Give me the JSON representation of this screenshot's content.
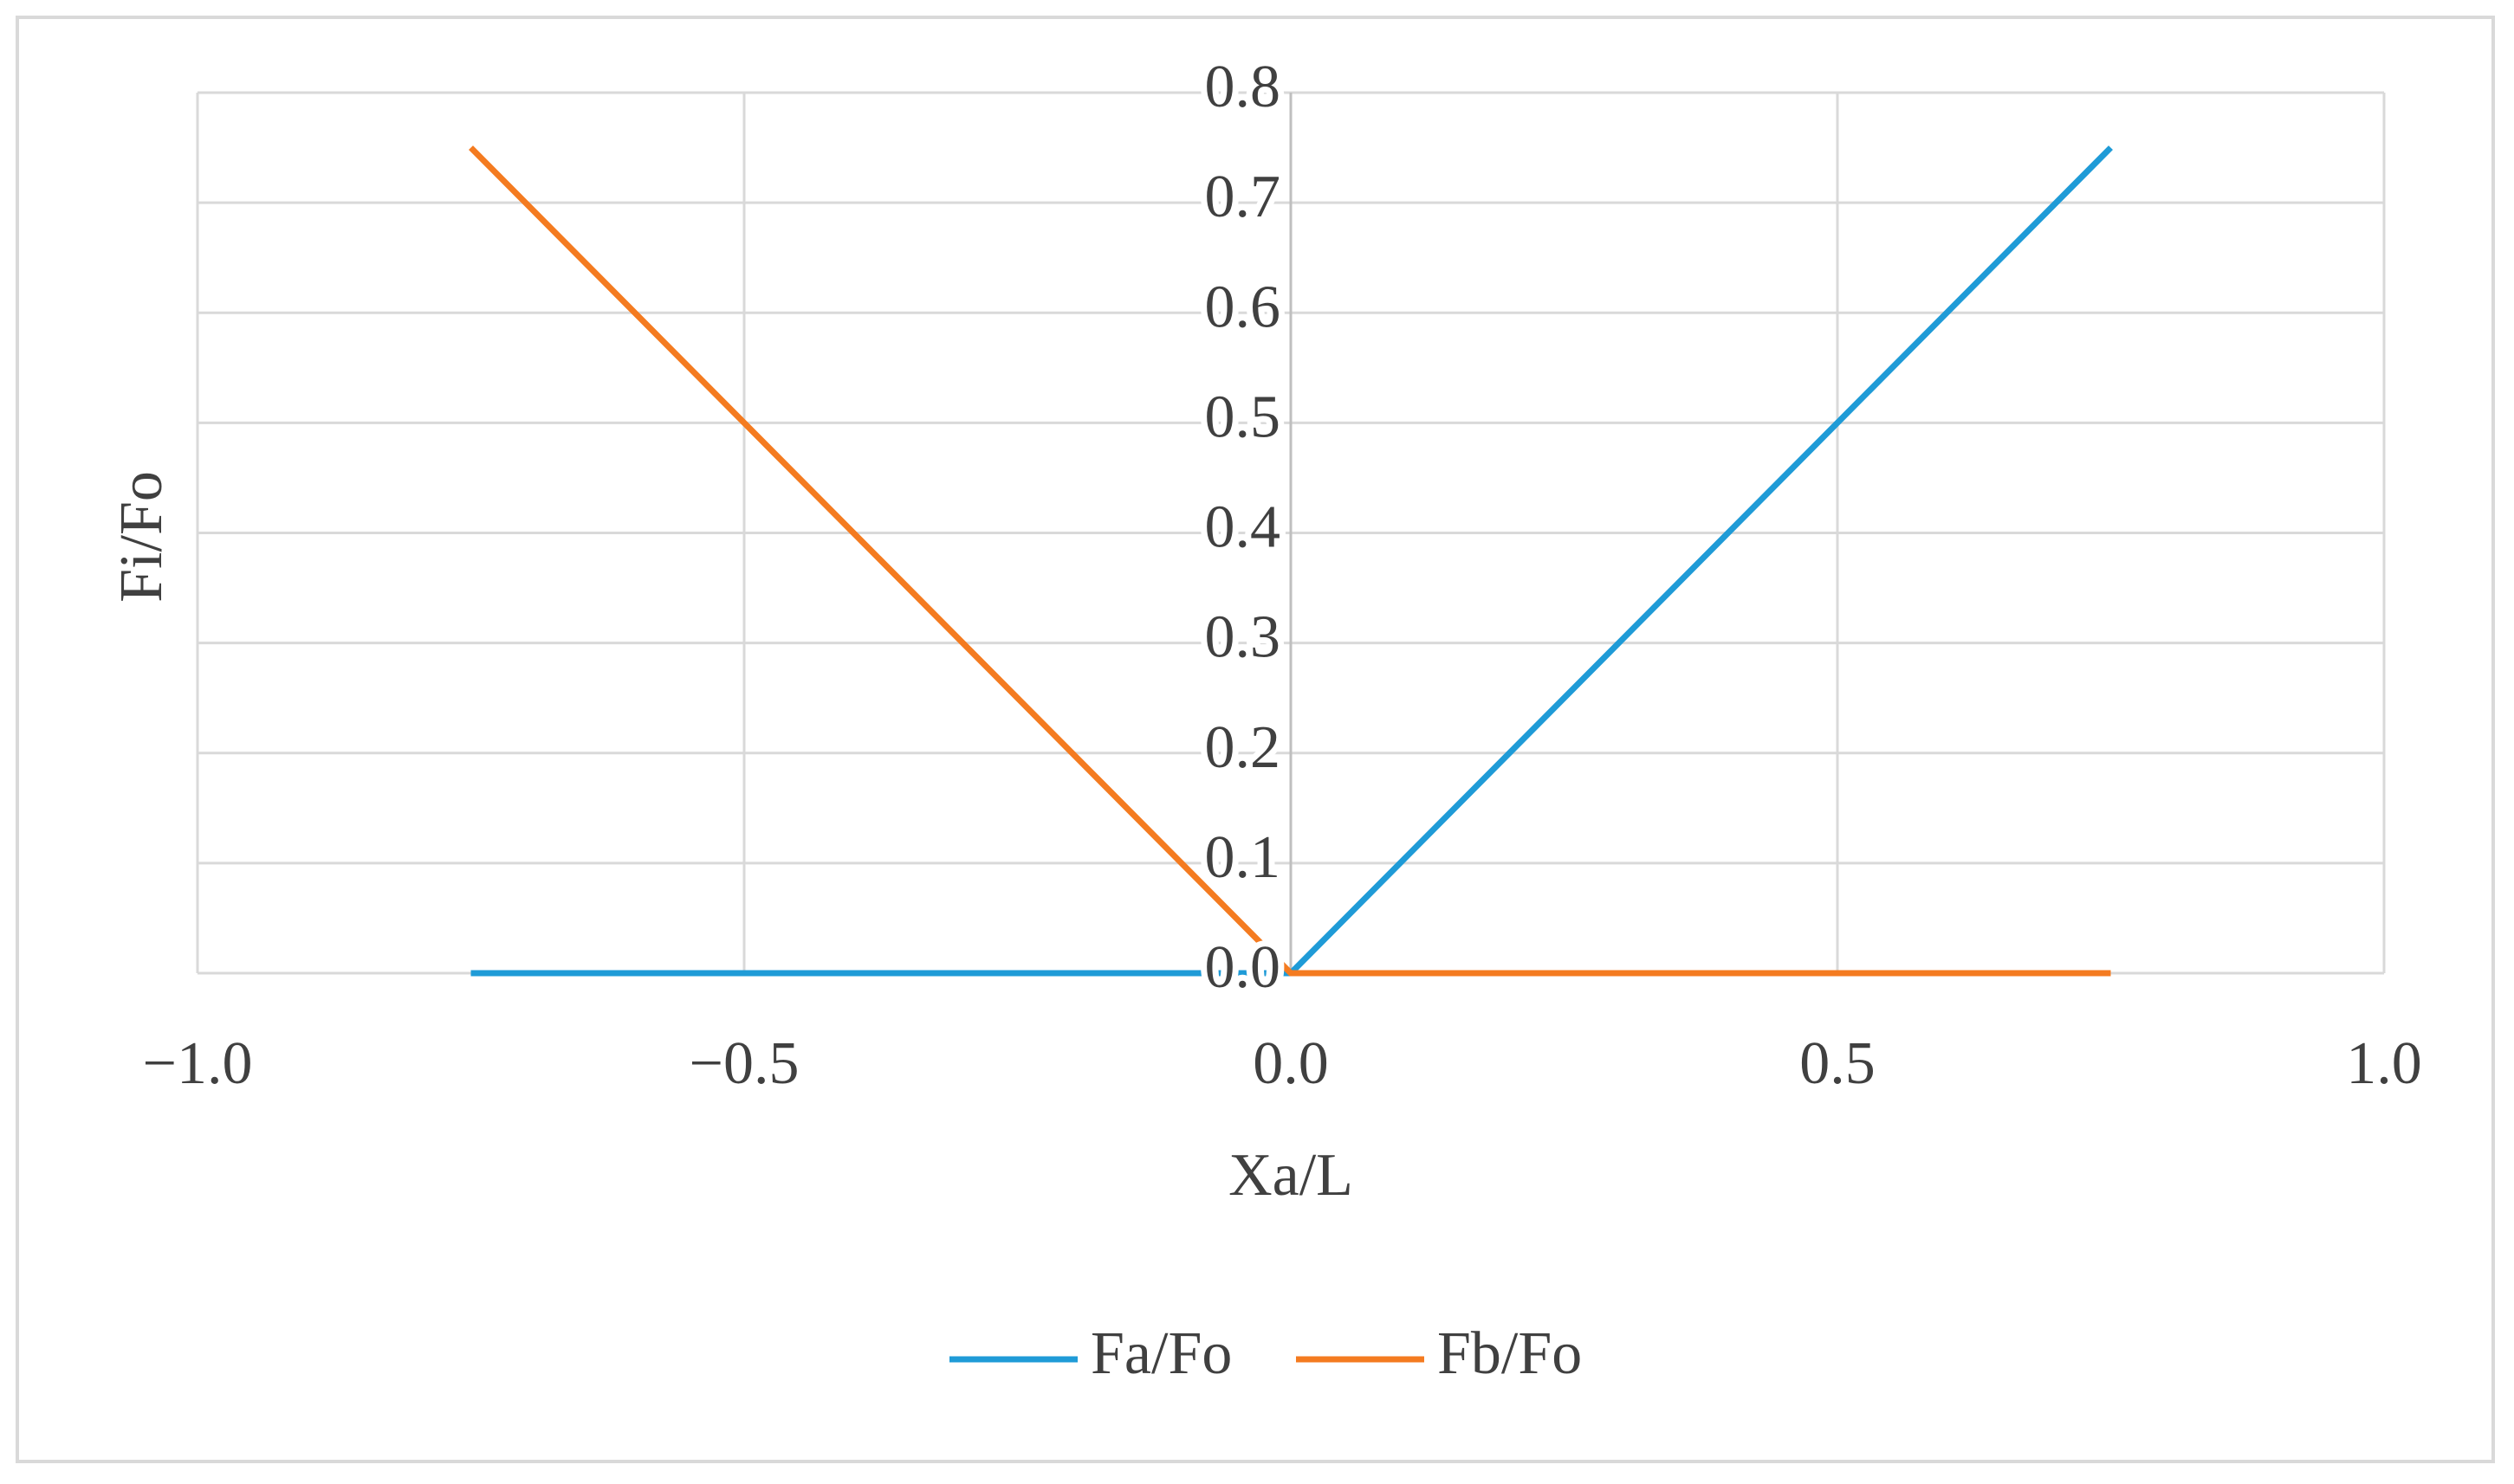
{
  "chart_data": {
    "type": "line",
    "x_label": "Xa/L",
    "y_label": "Fi/Fo",
    "x": [
      -0.75,
      0,
      0.75
    ],
    "series": [
      {
        "name": "Fa/Fo",
        "color": "#1f9bd7",
        "values": [
          0,
          0,
          0.75
        ]
      },
      {
        "name": "Fb/Fo",
        "color": "#f47b20",
        "values": [
          0.75,
          0,
          0
        ]
      }
    ],
    "xlim": [
      -1,
      1
    ],
    "xticks": [
      {
        "value": -1,
        "label": "−1.0"
      },
      {
        "value": -0.5,
        "label": "−0.5"
      },
      {
        "value": 0,
        "label": "0.0"
      },
      0.5,
      {
        "value": 1,
        "label": "1.0"
      }
    ],
    "ylim": [
      0,
      0.8
    ],
    "yticks": [
      {
        "value": 0,
        "label": "0.0"
      },
      0.1,
      0.2,
      0.3,
      0.4,
      0.5,
      0.6,
      0.7,
      0.8
    ],
    "grid": true,
    "legend": "bottom"
  }
}
